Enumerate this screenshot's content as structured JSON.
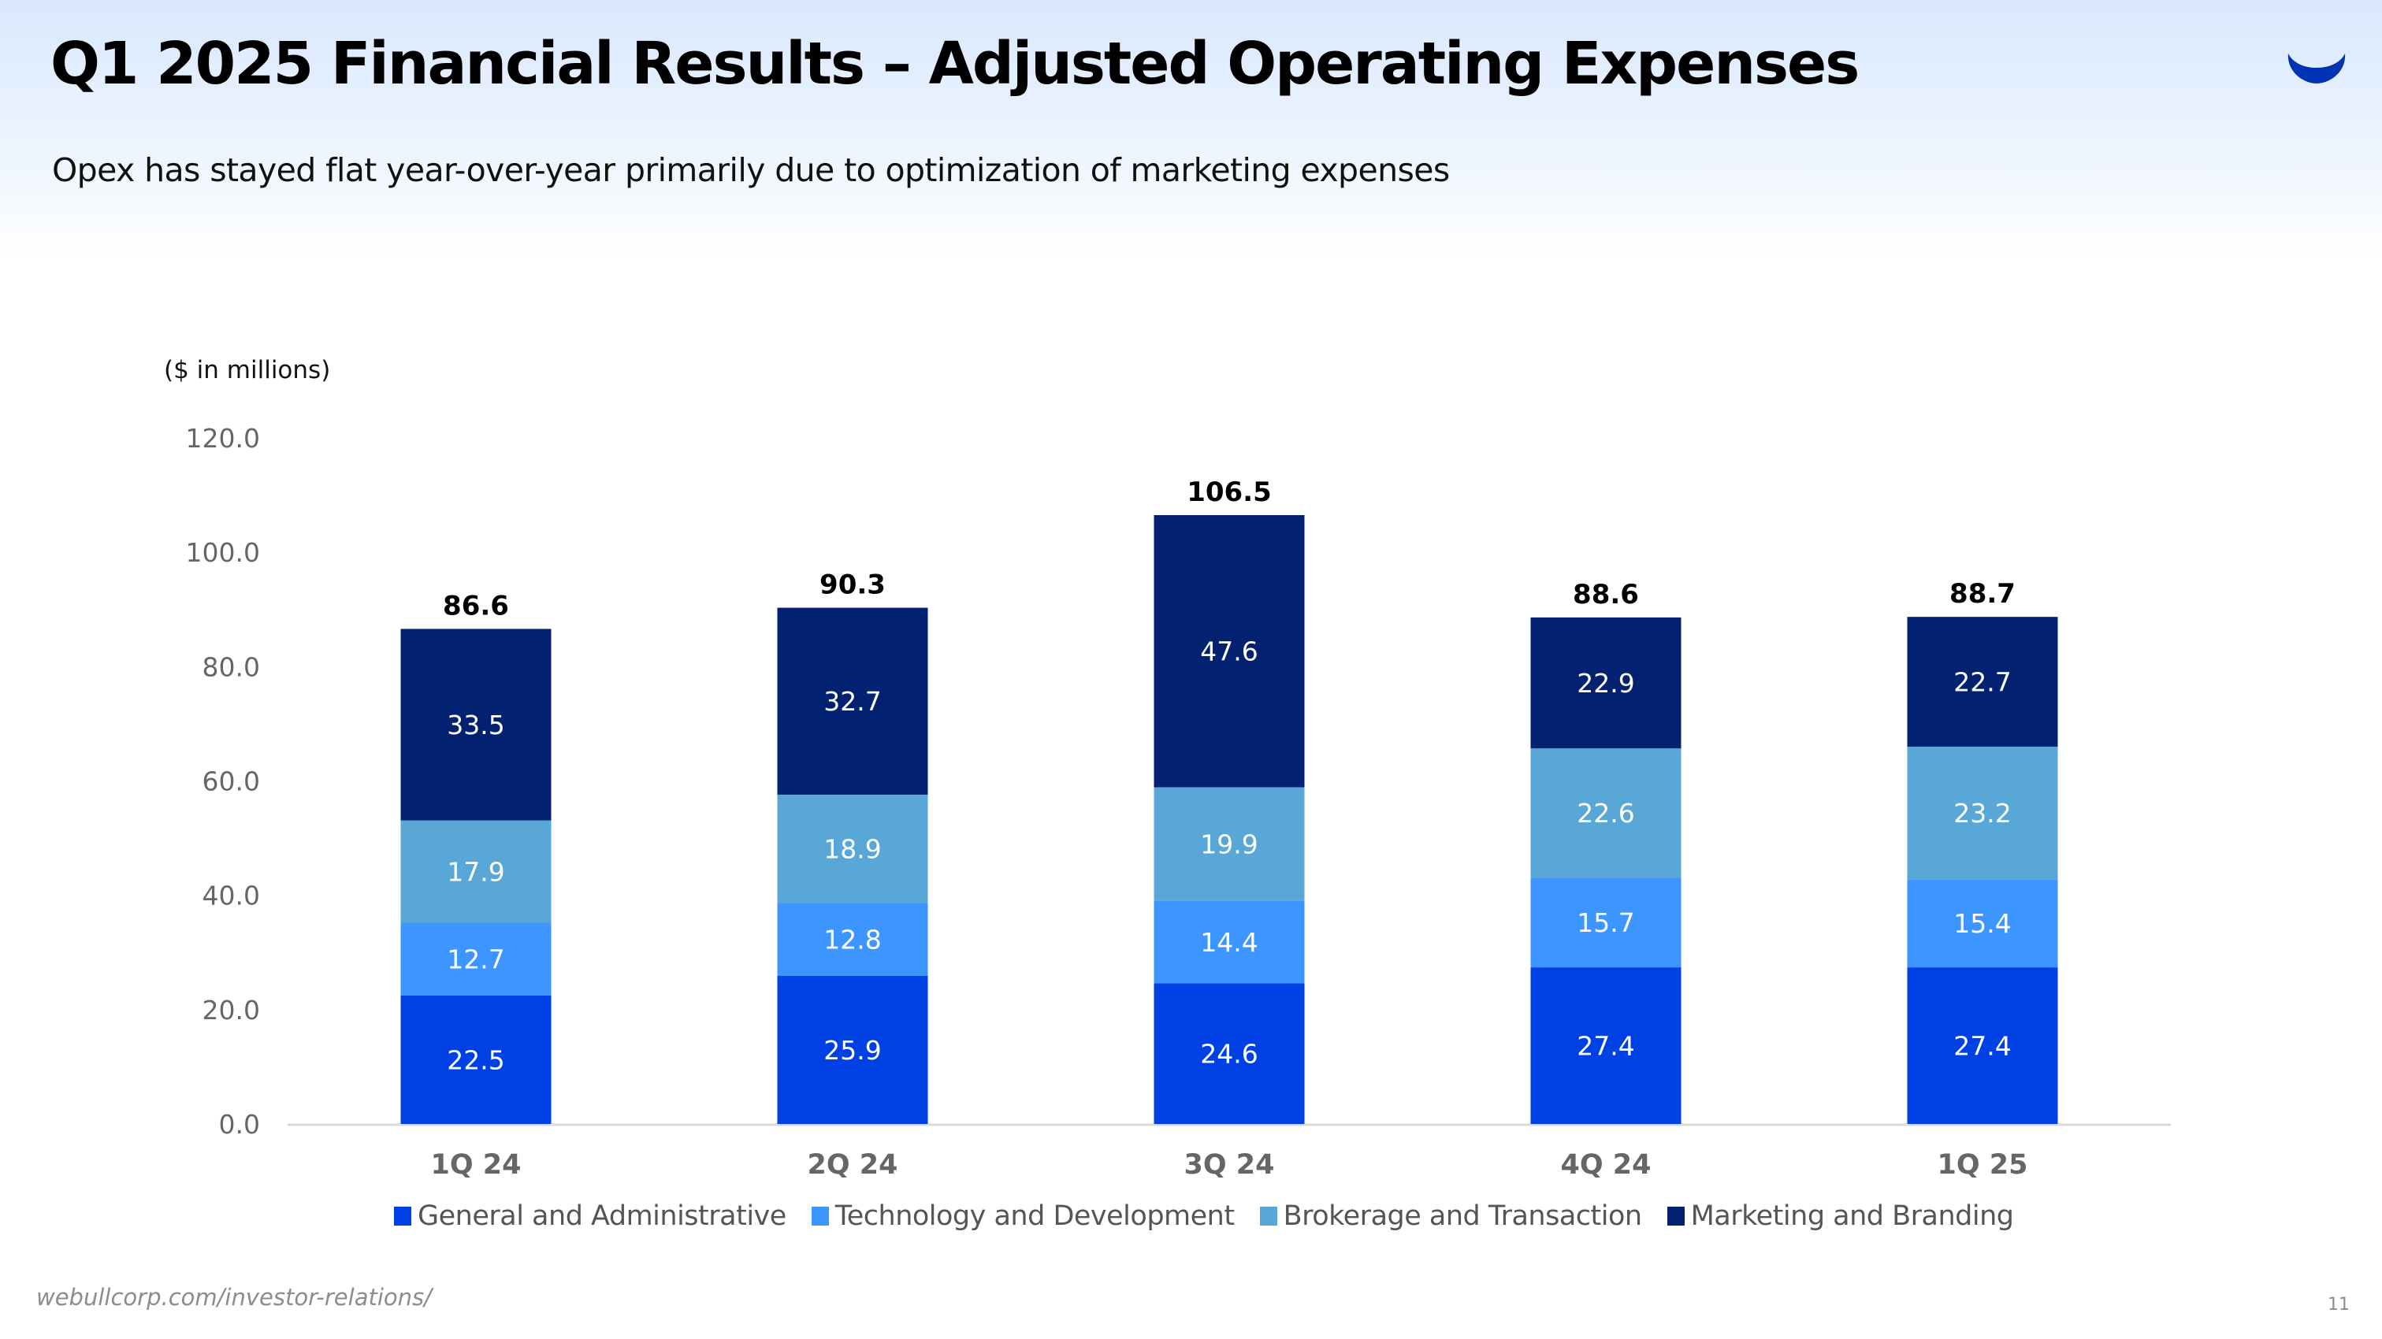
{
  "slide": {
    "title": "Q1 2025 Financial Results – Adjusted Operating Expenses",
    "subtitle": "Opex has stayed flat year-over-year primarily due to optimization of marketing expenses",
    "logo_icon": "webull-logo-icon",
    "footer_url": "webullcorp.com/investor-relations/",
    "page_number": "11"
  },
  "chart_data": {
    "type": "bar",
    "stacked": true,
    "title": "",
    "unit_note": "($ in millions)",
    "xlabel": "",
    "ylabel": "",
    "ylim": [
      0,
      120
    ],
    "yticks": [
      0,
      20,
      40,
      60,
      80,
      100,
      120
    ],
    "ytick_labels": [
      "0.0",
      "20.0",
      "40.0",
      "60.0",
      "80.0",
      "100.0",
      "120.0"
    ],
    "grid": false,
    "legend_position": "bottom",
    "categories": [
      "1Q 24",
      "2Q 24",
      "3Q 24",
      "4Q 24",
      "1Q 25"
    ],
    "series": [
      {
        "name": "General and Administrative",
        "color": "#0041e6",
        "values": [
          22.5,
          25.9,
          24.6,
          27.4,
          27.4
        ]
      },
      {
        "name": "Technology and Development",
        "color": "#3d95ff",
        "values": [
          12.7,
          12.8,
          14.4,
          15.7,
          15.4
        ]
      },
      {
        "name": "Brokerage and Transaction",
        "color": "#58a7d6",
        "values": [
          17.9,
          18.9,
          19.9,
          22.6,
          23.2
        ]
      },
      {
        "name": "Marketing and Branding",
        "color": "#022170",
        "values": [
          33.5,
          32.7,
          47.6,
          22.9,
          22.7
        ]
      }
    ],
    "totals": [
      86.6,
      90.3,
      106.5,
      88.6,
      88.7
    ],
    "total_labels": [
      "86.6",
      "90.3",
      "106.5",
      "88.6",
      "88.7"
    ]
  }
}
